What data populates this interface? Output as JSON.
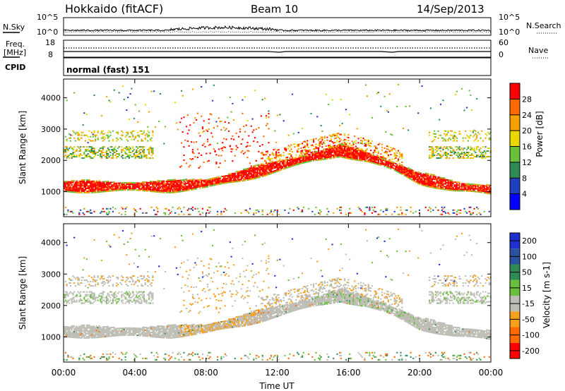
{
  "header": {
    "station": "Hokkaido (fitACF)",
    "beam": "Beam 10",
    "date": "14/Sep/2013"
  },
  "noise_panel": {
    "left_label": "N.Sky",
    "right_label": "N.Search",
    "left_ticks": [
      "10^5",
      "10^0"
    ],
    "right_ticks": [
      "10^5",
      "10^0"
    ]
  },
  "freq_panel": {
    "left_label": "Freq.",
    "left_unit": "[MHz]",
    "right_label": "Nave",
    "left_ticks": [
      "18",
      "8"
    ],
    "right_ticks": [
      "60",
      "0"
    ]
  },
  "cpid_panel": {
    "label": "CPID",
    "mode_text": "normal (fast) 151"
  },
  "colors": {
    "power": [
      "#0000ff",
      "#2040c0",
      "#2e8b57",
      "#6abf3c",
      "#e8d800",
      "#f6a000",
      "#ff6a00",
      "#ff0000"
    ],
    "velocity": [
      "#1f2fd0",
      "#2a52a0",
      "#2e8b57",
      "#6abf3c",
      "#bdbdb5",
      "#f6a020",
      "#ff6a00",
      "#ff0000"
    ]
  },
  "chart_data": [
    {
      "type": "heatmap",
      "name": "power",
      "ylabel": "Slant Range [km]",
      "yticks": [
        1000,
        2000,
        3000,
        4000
      ],
      "ylim": [
        200,
        4600
      ],
      "xlim": [
        0,
        24
      ],
      "colorbar": {
        "label": "Power [dB]",
        "ticks": [
          4,
          8,
          12,
          16,
          20,
          24,
          28
        ],
        "range": [
          0,
          32
        ]
      },
      "echo_bands": [
        {
          "time": [
            0,
            6,
            8,
            10,
            12,
            14,
            15.5,
            17,
            18.5,
            20,
            22,
            24
          ],
          "range_center": [
            1150,
            1150,
            1250,
            1500,
            1800,
            2100,
            2300,
            2100,
            1800,
            1400,
            1150,
            1050
          ],
          "typical_power": 28
        }
      ]
    },
    {
      "type": "heatmap",
      "name": "velocity",
      "ylabel": "Slant Range [km]",
      "yticks": [
        1000,
        2000,
        3000,
        4000
      ],
      "ylim": [
        200,
        4600
      ],
      "xlim": [
        0,
        24
      ],
      "colorbar": {
        "label": "Velocity [m s-1]",
        "ticks": [
          200,
          100,
          50,
          15,
          -15,
          -50,
          -100,
          -200
        ]
      }
    }
  ],
  "xaxis": {
    "label": "Time UT",
    "ticks": [
      "00:00",
      "04:00",
      "08:00",
      "12:00",
      "16:00",
      "20:00",
      "00:00"
    ]
  }
}
